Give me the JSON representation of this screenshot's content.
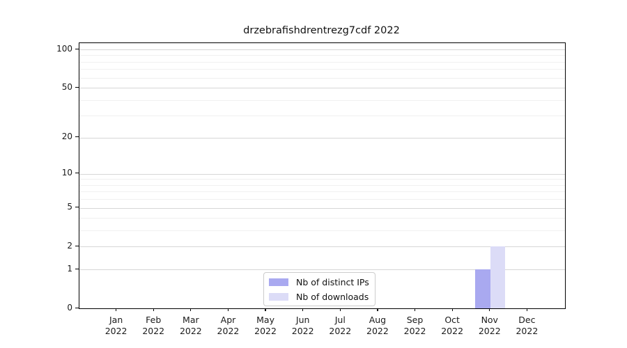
{
  "figure": {
    "title": "drzebrafishdrentrezg7cdf 2022"
  },
  "chart_data": {
    "type": "bar",
    "title": "drzebrafishdrentrezg7cdf 2022",
    "categories": [
      "Jan 2022",
      "Feb 2022",
      "Mar 2022",
      "Apr 2022",
      "May 2022",
      "Jun 2022",
      "Jul 2022",
      "Aug 2022",
      "Sep 2022",
      "Oct 2022",
      "Nov 2022",
      "Dec 2022"
    ],
    "series": [
      {
        "name": "Nb of distinct IPs",
        "color": "#a9a9f0",
        "values": [
          0,
          0,
          0,
          0,
          0,
          0,
          0,
          0,
          0,
          0,
          1,
          0
        ]
      },
      {
        "name": "Nb of downloads",
        "color": "#dcdcf7",
        "values": [
          0,
          0,
          0,
          0,
          0,
          0,
          0,
          0,
          0,
          0,
          2,
          0
        ]
      }
    ],
    "yscale": "log1p",
    "ylim": [
      0,
      112
    ],
    "yticks": [
      0,
      1,
      2,
      5,
      10,
      20,
      50,
      100
    ],
    "yticks_minor": [
      3,
      4,
      6,
      7,
      8,
      9,
      30,
      40,
      60,
      70,
      80,
      90
    ],
    "xlabel": "",
    "ylabel": "",
    "grid": "horizontal",
    "legend_position": "lower center"
  },
  "legend": {
    "items": [
      {
        "label": "Nb of distinct IPs",
        "color": "#a9a9f0"
      },
      {
        "label": "Nb of downloads",
        "color": "#dcdcf7"
      }
    ]
  },
  "colors": {
    "grid_major": "#d6d6d6",
    "grid_minor": "#f0f0f0",
    "axis": "#000000",
    "background": "#ffffff"
  }
}
